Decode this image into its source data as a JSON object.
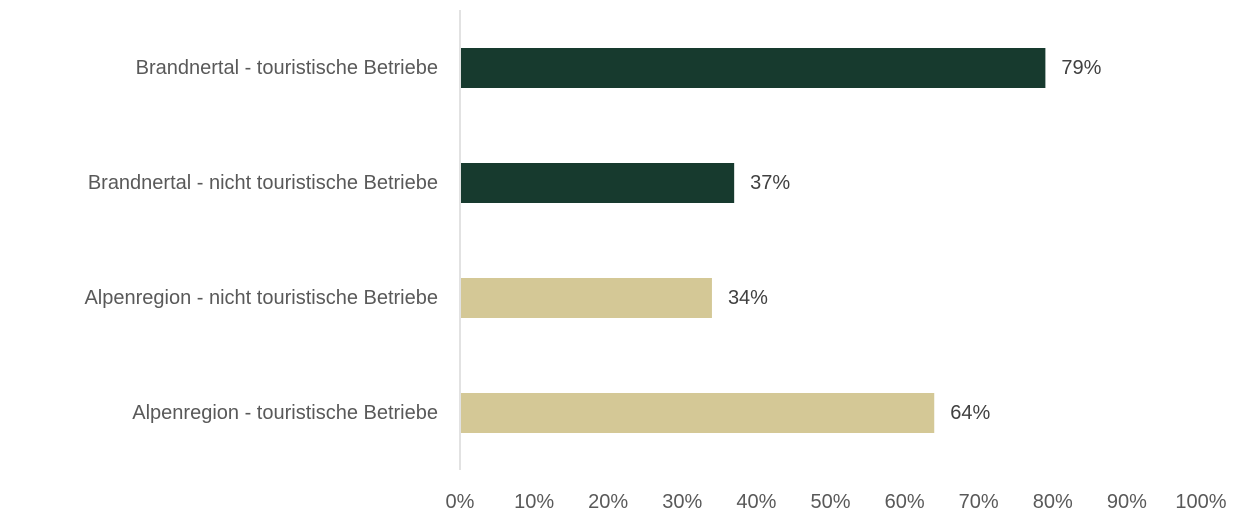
{
  "chart_data": {
    "type": "bar",
    "orientation": "horizontal",
    "categories": [
      "Brandnertal - touristische Betriebe",
      "Brandnertal - nicht touristische Betriebe",
      "Alpenregion - nicht touristische Betriebe",
      "Alpenregion - touristische Betriebe"
    ],
    "values": [
      79,
      37,
      34,
      64
    ],
    "data_labels": [
      "79%",
      "37%",
      "34%",
      "64%"
    ],
    "bar_colors": [
      "#173a2e",
      "#173a2e",
      "#d4c896",
      "#d4c896"
    ],
    "xlim": [
      0,
      100
    ],
    "x_ticks": [
      0,
      10,
      20,
      30,
      40,
      50,
      60,
      70,
      80,
      90,
      100
    ],
    "x_tick_labels": [
      "0%",
      "10%",
      "20%",
      "30%",
      "40%",
      "50%",
      "60%",
      "70%",
      "80%",
      "90%",
      "100%"
    ],
    "title": "",
    "xlabel": "",
    "ylabel": "",
    "grid": false,
    "legend": "none",
    "axis_color": "#d9d9d9",
    "label_color": "#595959"
  }
}
